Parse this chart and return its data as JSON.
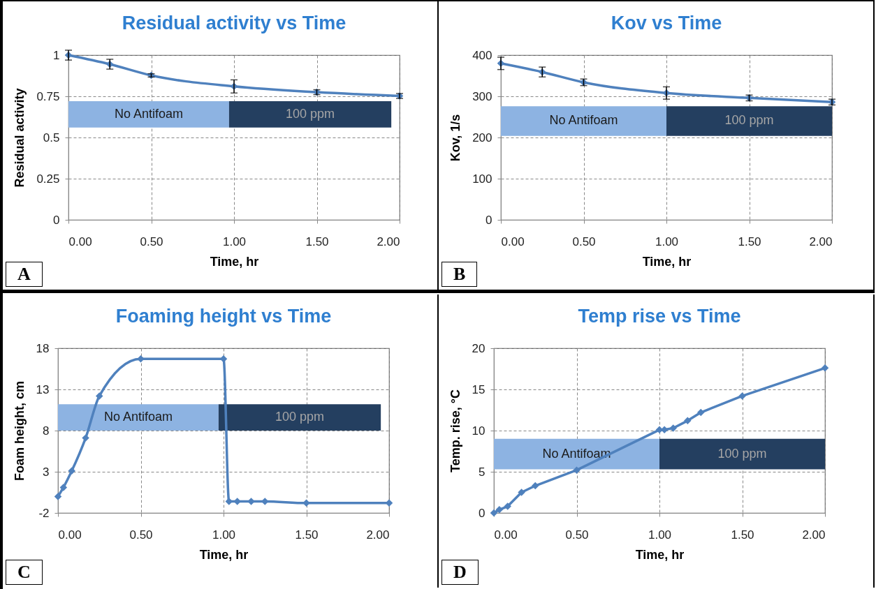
{
  "chart_data": [
    {
      "type": "line",
      "title": "Residual activity vs Time",
      "xlabel": "Time, hr",
      "ylabel": "Residual activity",
      "annotations": [
        "A"
      ],
      "x": [
        0,
        0.25,
        0.5,
        1,
        1.5,
        2
      ],
      "series": [
        {
          "color": "#4f81bd",
          "values": [
            1,
            0.945,
            0.877,
            0.81,
            0.775,
            0.752
          ],
          "errors": [
            0.03,
            0.03,
            0.01,
            0.04,
            0.015,
            0.015
          ]
        }
      ],
      "xlim": [
        0,
        2
      ],
      "xticks": [
        {
          "value": 0,
          "label": "0.00"
        },
        {
          "value": 0.5,
          "label": "0.50"
        },
        {
          "value": 1,
          "label": "1.00"
        },
        {
          "value": 1.5,
          "label": "1.50"
        },
        {
          "value": 2,
          "label": "2.00"
        }
      ],
      "ylim": [
        0,
        1
      ],
      "yticks": [
        0,
        0.25,
        0.5,
        0.75,
        1
      ],
      "grid": true,
      "marker": "diamond",
      "line_style": "solid",
      "bands": [
        {
          "axis": "x",
          "from": 0,
          "to": 0.97,
          "label": "No Antifoam",
          "color": "#8db3e2"
        },
        {
          "axis": "x",
          "from": 0.97,
          "to": 1.95,
          "label": "100 ppm",
          "color": "#243f60"
        }
      ]
    },
    {
      "type": "line",
      "title": "Kov vs Time",
      "xlabel": "Time, hr",
      "ylabel": "Kov, 1/s",
      "annotations": [
        "B"
      ],
      "x": [
        0,
        0.25,
        0.5,
        1,
        1.5,
        2
      ],
      "series": [
        {
          "color": "#4f81bd",
          "values": [
            380,
            359,
            334,
            308,
            296,
            286
          ],
          "errors": [
            15,
            12,
            8,
            15,
            7,
            7
          ]
        }
      ],
      "xlim": [
        0,
        2
      ],
      "xticks": [
        {
          "value": 0,
          "label": "0.00"
        },
        {
          "value": 0.5,
          "label": "0.50"
        },
        {
          "value": 1,
          "label": "1.00"
        },
        {
          "value": 1.5,
          "label": "1.50"
        },
        {
          "value": 2,
          "label": "2.00"
        }
      ],
      "ylim": [
        0,
        400
      ],
      "yticks": [
        0,
        100,
        200,
        300,
        400
      ],
      "grid": true,
      "marker": "diamond",
      "line_style": "solid",
      "bands": [
        {
          "axis": "x",
          "from": 0,
          "to": 1,
          "label": "No Antifoam",
          "color": "#8db3e2"
        },
        {
          "axis": "x",
          "from": 1,
          "to": 2,
          "label": "100 ppm",
          "color": "#243f60"
        }
      ]
    },
    {
      "type": "line",
      "title": "Foaming height vs Time",
      "xlabel": "Time, hr",
      "ylabel": "Foam height, cm",
      "annotations": [
        "C"
      ],
      "x": [
        0,
        0.033,
        0.083,
        0.167,
        0.25,
        0.5,
        1,
        1.033,
        1.083,
        1.167,
        1.25,
        1.5,
        2
      ],
      "series": [
        {
          "color": "#4f81bd",
          "values": [
            0,
            1.1,
            3.1,
            7.1,
            12.2,
            16.7,
            16.7,
            -0.6,
            -0.6,
            -0.6,
            -0.6,
            -0.8,
            -0.8
          ]
        }
      ],
      "xlim": [
        0,
        2
      ],
      "xticks": [
        {
          "value": 0,
          "label": "0.00"
        },
        {
          "value": 0.5,
          "label": "0.50"
        },
        {
          "value": 1,
          "label": "1.00"
        },
        {
          "value": 1.5,
          "label": "1.50"
        },
        {
          "value": 2,
          "label": "2.00"
        }
      ],
      "ylim": [
        -2,
        18
      ],
      "yticks": [
        -2,
        3,
        8,
        13,
        18
      ],
      "grid": true,
      "marker": "diamond",
      "line_style": "solid",
      "bands": [
        {
          "axis": "x",
          "from": 0,
          "to": 0.97,
          "label": "No Antifoam",
          "color": "#8db3e2"
        },
        {
          "axis": "x",
          "from": 0.97,
          "to": 1.95,
          "label": "100 ppm",
          "color": "#243f60"
        }
      ]
    },
    {
      "type": "line",
      "title": "Temp rise vs Time",
      "xlabel": "Time, hr",
      "ylabel": "Temp. rise, °C",
      "annotations": [
        "D"
      ],
      "x": [
        0,
        0.033,
        0.083,
        0.167,
        0.25,
        0.5,
        1,
        1.03,
        1.083,
        1.17,
        1.25,
        1.5,
        2
      ],
      "series": [
        {
          "color": "#4f81bd",
          "values": [
            0,
            0.4,
            0.8,
            2.5,
            3.3,
            5.2,
            10.1,
            10.1,
            10.3,
            11.2,
            12.2,
            14.2,
            17.6
          ]
        }
      ],
      "xlim": [
        0,
        2
      ],
      "xticks": [
        {
          "value": 0,
          "label": "0.00"
        },
        {
          "value": 0.5,
          "label": "0.50"
        },
        {
          "value": 1,
          "label": "1.00"
        },
        {
          "value": 1.5,
          "label": "1.50"
        },
        {
          "value": 2,
          "label": "2.00"
        }
      ],
      "ylim": [
        0,
        20
      ],
      "yticks": [
        0,
        5,
        10,
        15,
        20
      ],
      "grid": true,
      "marker": "diamond",
      "line_style": "solid",
      "bands": [
        {
          "axis": "x",
          "from": 0,
          "to": 1,
          "label": "No Antifoam",
          "color": "#8db3e2"
        },
        {
          "axis": "x",
          "from": 1,
          "to": 2,
          "label": "100 ppm",
          "color": "#243f60"
        }
      ]
    }
  ]
}
